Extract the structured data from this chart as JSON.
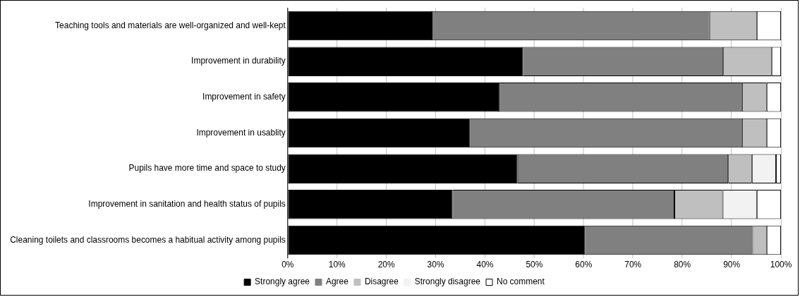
{
  "chart_data": {
    "type": "bar",
    "orientation": "horizontal",
    "stacked": true,
    "categories": [
      "Teaching tools and materials are well-organized and well-kept",
      "Improvement in durability",
      "Improvement in safety",
      "Improvement in usablity",
      "Pupils have more time and space to study",
      "Improvement in sanitation and health status of pupils",
      "Cleaning toilets and classrooms becomes a habitual activity among pupils"
    ],
    "series": [
      {
        "name": "Strongly agree",
        "color": "#000000",
        "values": [
          29.2,
          47.7,
          42.8,
          37.0,
          46.6,
          33.4,
          60.3
        ]
      },
      {
        "name": "Agree",
        "color": "#808080",
        "values": [
          56.3,
          40.6,
          49.3,
          55.1,
          42.7,
          45.0,
          33.9
        ]
      },
      {
        "name": "Disagree",
        "color": "#bfbfbf",
        "values": [
          9.6,
          9.8,
          5.0,
          5.0,
          4.8,
          9.8,
          2.9
        ]
      },
      {
        "name": "Strongly disagree",
        "color": "#f2f2f2",
        "values": [
          0,
          0,
          0,
          0,
          4.9,
          6.9,
          0
        ]
      },
      {
        "name": "No comment",
        "color": "#ffffff",
        "values": [
          4.9,
          1.9,
          2.9,
          2.9,
          1.0,
          4.9,
          2.9
        ]
      }
    ],
    "xlim": [
      0,
      100
    ],
    "xticks": [
      {
        "value": 0,
        "label": "0%"
      },
      {
        "value": 10,
        "label": "10%"
      },
      {
        "value": 20,
        "label": "20%"
      },
      {
        "value": 30,
        "label": "30%"
      },
      {
        "value": 40,
        "label": "40%"
      },
      {
        "value": 50,
        "label": "50%"
      },
      {
        "value": 60,
        "label": "60%"
      },
      {
        "value": 70,
        "label": "70%"
      },
      {
        "value": 80,
        "label": "80%"
      },
      {
        "value": 90,
        "label": "90%"
      },
      {
        "value": 100,
        "label": "100%"
      }
    ],
    "grid": "x",
    "legend": "bottom"
  }
}
